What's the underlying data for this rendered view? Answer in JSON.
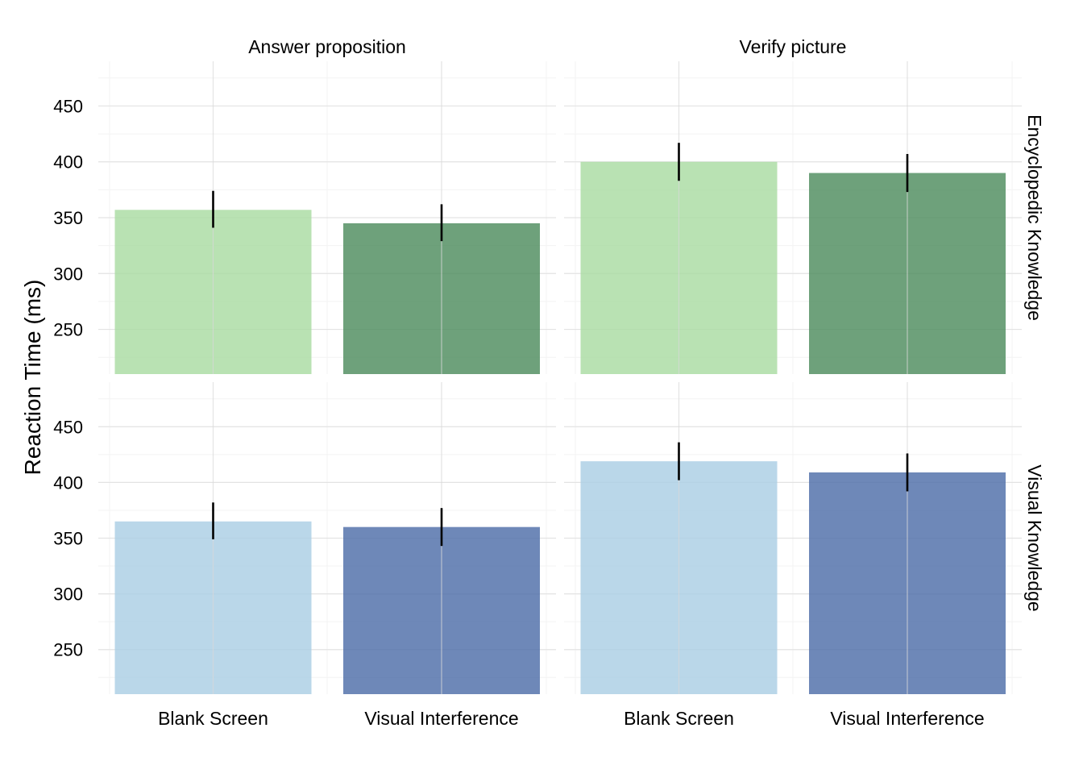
{
  "chart_data": {
    "type": "bar",
    "ylabel": "Reaction Time (ms)",
    "xlabel": "",
    "categories": [
      "Blank Screen",
      "Visual Interference"
    ],
    "column_facets": [
      "Answer proposition",
      "Verify picture"
    ],
    "row_facets": [
      "Encyclopedic Knowledge",
      "Visual Knowledge"
    ],
    "ylim": [
      210,
      490
    ],
    "yticks": [
      250,
      300,
      350,
      400,
      450
    ],
    "grid": true,
    "legend": "none",
    "colors": {
      "Encyclopedic Knowledge": [
        "#a8dba0",
        "#4a8a5a"
      ],
      "Visual Knowledge": [
        "#a9cde3",
        "#4a6aa6"
      ]
    },
    "panels": [
      {
        "row": "Encyclopedic Knowledge",
        "col": "Answer proposition",
        "values": [
          357,
          345
        ],
        "err_low": [
          341,
          329
        ],
        "err_high": [
          374,
          362
        ]
      },
      {
        "row": "Encyclopedic Knowledge",
        "col": "Verify picture",
        "values": [
          400,
          390
        ],
        "err_low": [
          383,
          373
        ],
        "err_high": [
          417,
          407
        ]
      },
      {
        "row": "Visual Knowledge",
        "col": "Answer proposition",
        "values": [
          365,
          360
        ],
        "err_low": [
          349,
          343
        ],
        "err_high": [
          382,
          377
        ]
      },
      {
        "row": "Visual Knowledge",
        "col": "Verify picture",
        "values": [
          419,
          409
        ],
        "err_low": [
          402,
          392
        ],
        "err_high": [
          436,
          426
        ]
      }
    ]
  }
}
